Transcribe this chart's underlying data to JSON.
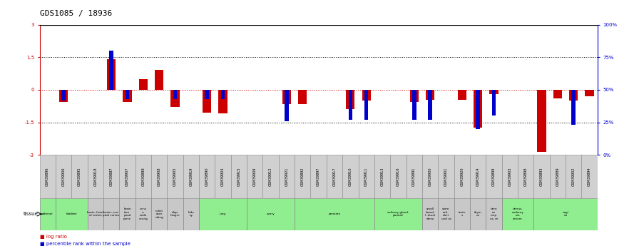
{
  "title": "GDS1085 / 18936",
  "samples": [
    "GSM39896",
    "GSM39906",
    "GSM39895",
    "GSM39918",
    "GSM39887",
    "GSM39907",
    "GSM39888",
    "GSM39908",
    "GSM39905",
    "GSM39919",
    "GSM39890",
    "GSM39904",
    "GSM39915",
    "GSM39909",
    "GSM39912",
    "GSM39921",
    "GSM39892",
    "GSM39897",
    "GSM39917",
    "GSM39910",
    "GSM39911",
    "GSM39913",
    "GSM39916",
    "GSM39891",
    "GSM39900",
    "GSM39901",
    "GSM39920",
    "GSM39914",
    "GSM39899",
    "GSM39903",
    "GSM39898",
    "GSM39893",
    "GSM39889",
    "GSM39902",
    "GSM39894"
  ],
  "log_ratio": [
    0.0,
    -0.55,
    0.0,
    0.0,
    1.4,
    -0.55,
    0.5,
    0.9,
    -0.8,
    0.0,
    -1.05,
    -1.1,
    0.0,
    0.0,
    0.0,
    -0.65,
    -0.65,
    0.0,
    0.0,
    -0.9,
    -0.5,
    0.0,
    0.0,
    -0.55,
    -0.45,
    0.0,
    -0.45,
    -1.75,
    -0.2,
    0.0,
    0.0,
    -2.85,
    -0.4,
    -0.5,
    -0.3
  ],
  "pct_rank": [
    null,
    42,
    null,
    null,
    80,
    43,
    null,
    null,
    43,
    null,
    43,
    43,
    null,
    null,
    null,
    26,
    null,
    null,
    null,
    27,
    27,
    null,
    null,
    27,
    27,
    null,
    null,
    20,
    30,
    null,
    null,
    null,
    null,
    23,
    null
  ],
  "tissues": [
    {
      "label": "adrenal",
      "start": 0,
      "end": 1,
      "color": "#90EE90"
    },
    {
      "label": "bladder",
      "start": 1,
      "end": 3,
      "color": "#90EE90"
    },
    {
      "label": "brain, front\nal cortex",
      "start": 3,
      "end": 4,
      "color": "#c8c8c8"
    },
    {
      "label": "brain, occi\npital cortex",
      "start": 4,
      "end": 5,
      "color": "#c8c8c8"
    },
    {
      "label": "brain\ntem\nporal\nporte",
      "start": 5,
      "end": 6,
      "color": "#c8c8c8"
    },
    {
      "label": "cervi\nx,\nendo\ncervig",
      "start": 6,
      "end": 7,
      "color": "#c8c8c8"
    },
    {
      "label": "colon\nasce\nnding",
      "start": 7,
      "end": 8,
      "color": "#c8c8c8"
    },
    {
      "label": "diap\nhragm",
      "start": 8,
      "end": 9,
      "color": "#c8c8c8"
    },
    {
      "label": "kidn\ney",
      "start": 9,
      "end": 10,
      "color": "#c8c8c8"
    },
    {
      "label": "lung",
      "start": 10,
      "end": 13,
      "color": "#90EE90"
    },
    {
      "label": "ovary",
      "start": 13,
      "end": 16,
      "color": "#90EE90"
    },
    {
      "label": "prostate",
      "start": 16,
      "end": 21,
      "color": "#90EE90"
    },
    {
      "label": "salivary gland,\nparotid",
      "start": 21,
      "end": 24,
      "color": "#90EE90"
    },
    {
      "label": "small\nbowel,\nI, ducd\ndenui",
      "start": 24,
      "end": 25,
      "color": "#c8c8c8"
    },
    {
      "label": "stom\nach,\nduct\nund us",
      "start": 25,
      "end": 26,
      "color": "#c8c8c8"
    },
    {
      "label": "teste\ns",
      "start": 26,
      "end": 27,
      "color": "#c8c8c8"
    },
    {
      "label": "thym\nus",
      "start": 27,
      "end": 28,
      "color": "#c8c8c8"
    },
    {
      "label": "uteri\nne\ncorp\nus, m",
      "start": 28,
      "end": 29,
      "color": "#c8c8c8"
    },
    {
      "label": "uterus,\nendomy\nom\netrium",
      "start": 29,
      "end": 31,
      "color": "#90EE90"
    },
    {
      "label": "vagi\nna",
      "start": 31,
      "end": 35,
      "color": "#90EE90"
    }
  ],
  "ylim": [
    -3,
    3
  ],
  "yticks_left": [
    -3,
    -1.5,
    0,
    1.5,
    3
  ],
  "yticks_right": [
    0,
    25,
    50,
    75,
    100
  ],
  "hlines_dotted": [
    -1.5,
    0.0,
    1.5
  ],
  "red_color": "#CC0000",
  "blue_color": "#0000CC",
  "bg_color": "#ffffff",
  "sample_box_color": "#d0d0d0"
}
